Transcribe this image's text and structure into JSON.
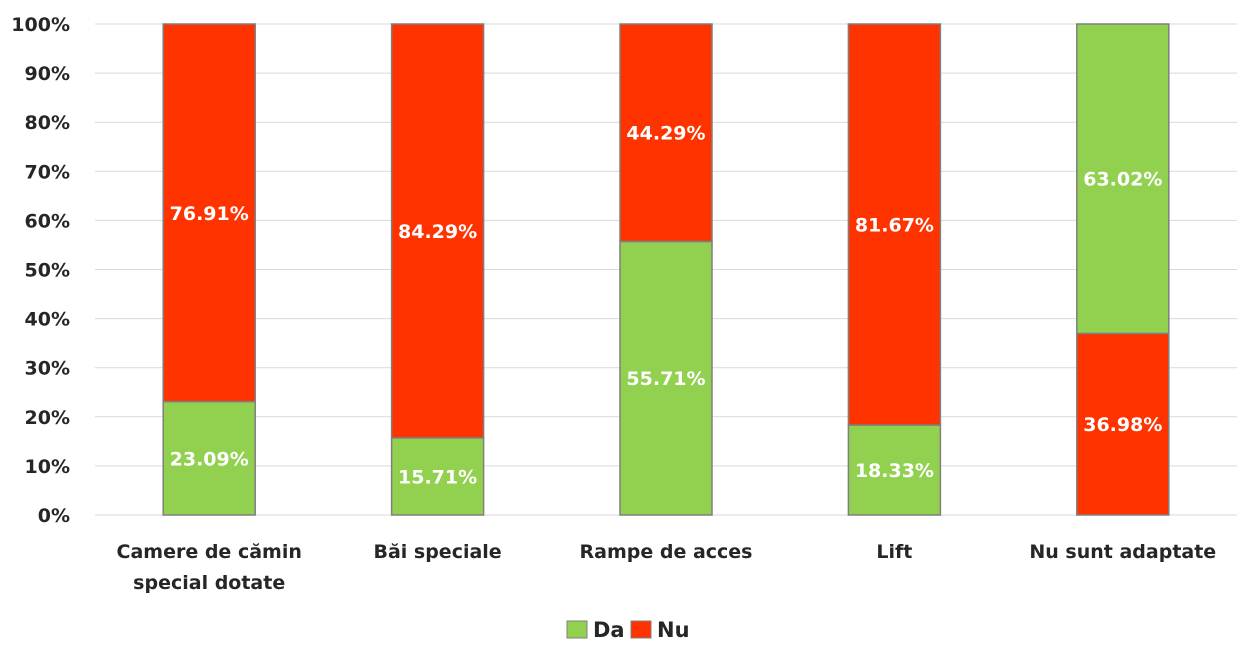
{
  "chart_data": {
    "type": "bar",
    "stacked": true,
    "categories": [
      [
        "Camere de cămin",
        "special dotate"
      ],
      [
        "Băi speciale"
      ],
      [
        "Rampe de acces"
      ],
      [
        "Lift"
      ],
      [
        "Nu sunt adaptate"
      ]
    ],
    "series": [
      {
        "name": "Da",
        "color": "#92d050",
        "values": [
          23.09,
          15.71,
          55.71,
          18.33,
          63.02
        ],
        "labels": [
          "23.09%",
          "15.71%",
          "55.71%",
          "18.33%",
          "63.02%"
        ]
      },
      {
        "name": "Nu",
        "color": "#ff3300",
        "values": [
          76.91,
          84.29,
          44.29,
          81.67,
          36.98
        ],
        "labels": [
          "76.91%",
          "84.29%",
          "44.29%",
          "81.67%",
          "36.98%"
        ]
      }
    ],
    "stack_order_top": [
      1,
      1,
      1,
      1,
      0
    ],
    "y_ticks": [
      "0%",
      "10%",
      "20%",
      "30%",
      "40%",
      "50%",
      "60%",
      "70%",
      "80%",
      "90%",
      "100%"
    ],
    "ylim": [
      0,
      100
    ],
    "grid": true,
    "legend_position": "bottom-center",
    "bar_border_color": "#7f7f7f",
    "grid_color": "#d9d9d9"
  }
}
